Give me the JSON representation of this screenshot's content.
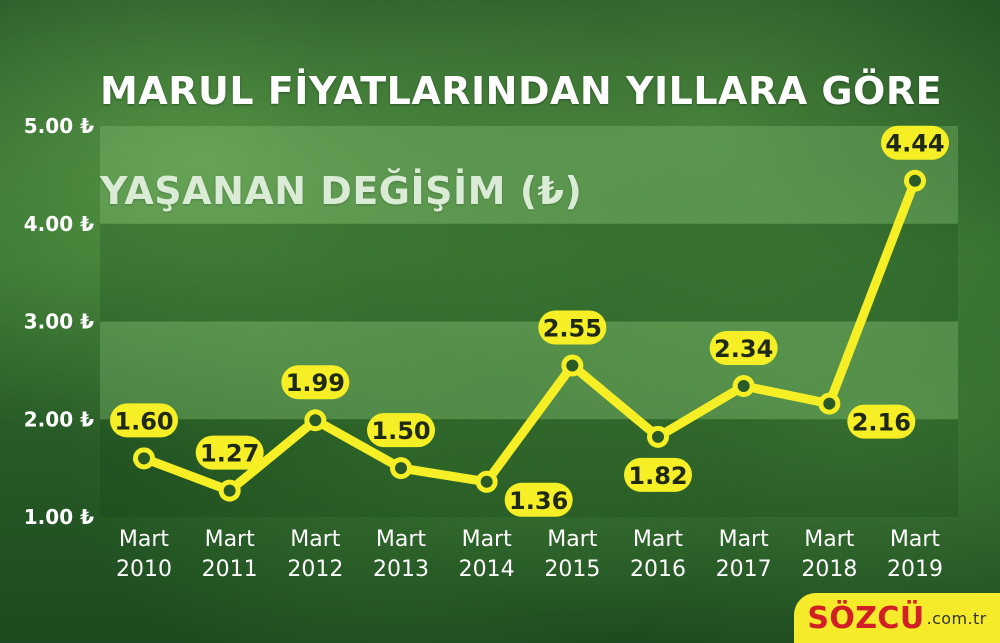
{
  "title": {
    "line1": "MARUL FİYATLARINDAN YILLARA GÖRE",
    "line2": "YAŞANAN DEĞİŞİM (₺)"
  },
  "brand": {
    "name": "SÖZCÜ",
    "suffix": ".com.tr",
    "background_color": "#f6eb2a",
    "text_color": "#d21f26"
  },
  "colors": {
    "line": "#f6ef26",
    "label_fill": "#f6ef26",
    "label_text": "#1f2a14",
    "grid_band": "#8bc57b",
    "axis_text": "#ffffff"
  },
  "chart_data": {
    "type": "line",
    "categories": [
      [
        "Mart",
        "2010"
      ],
      [
        "Mart",
        "2011"
      ],
      [
        "Mart",
        "2012"
      ],
      [
        "Mart",
        "2013"
      ],
      [
        "Mart",
        "2014"
      ],
      [
        "Mart",
        "2015"
      ],
      [
        "Mart",
        "2016"
      ],
      [
        "Mart",
        "2017"
      ],
      [
        "Mart",
        "2018"
      ],
      [
        "Mart",
        "2019"
      ]
    ],
    "values": [
      1.6,
      1.27,
      1.99,
      1.5,
      1.36,
      2.55,
      1.82,
      2.34,
      2.16,
      4.44
    ],
    "value_labels": [
      "1.60",
      "1.27",
      "1.99",
      "1.50",
      "1.36",
      "2.55",
      "1.82",
      "2.34",
      "2.16",
      "4.44"
    ],
    "label_positions": [
      "above",
      "above",
      "above",
      "above",
      "right",
      "above",
      "below",
      "above",
      "right",
      "above"
    ],
    "y_ticks": [
      {
        "value": 1,
        "label": "1.00 ₺"
      },
      {
        "value": 2,
        "label": "2.00 ₺"
      },
      {
        "value": 3,
        "label": "3.00 ₺"
      },
      {
        "value": 4,
        "label": "4.00 ₺"
      },
      {
        "value": 5,
        "label": "5.00 ₺"
      }
    ],
    "ylim": [
      1,
      5
    ],
    "title": "MARUL FİYATLARINDAN YILLARA GÖRE YAŞANAN DEĞİŞİM (₺)",
    "xlabel": "",
    "ylabel": "",
    "grid": true,
    "legend": "none"
  }
}
